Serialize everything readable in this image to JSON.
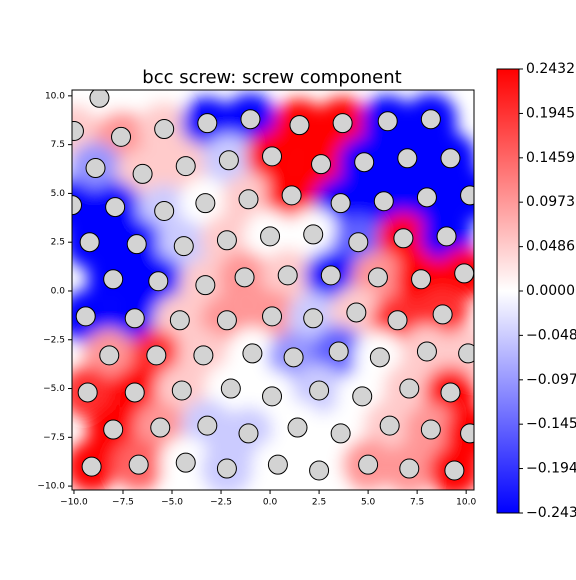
{
  "chart_data": {
    "type": "scatter",
    "title": "bcc screw: screw component",
    "colormap": "bwr",
    "xlim": [
      -10.1,
      10.4
    ],
    "ylim": [
      -10.2,
      10.3
    ],
    "xticks": [
      {
        "value": -10,
        "label": "−10.0"
      },
      {
        "value": -7.5,
        "label": "−7.5"
      },
      {
        "value": -5,
        "label": "−5.0"
      },
      {
        "value": -2.5,
        "label": "−2.5"
      },
      {
        "value": 0,
        "label": "0.0"
      },
      2.5,
      {
        "value": 5,
        "label": "5.0"
      },
      7.5,
      {
        "value": 10,
        "label": "10.0"
      }
    ],
    "yticks": [
      {
        "value": -10,
        "label": "−10.0"
      },
      {
        "value": -7.5,
        "label": "−7.5"
      },
      {
        "value": -5,
        "label": "−5.0"
      },
      {
        "value": -2.5,
        "label": "−2.5"
      },
      {
        "value": 0,
        "label": "0.0"
      },
      2.5,
      {
        "value": 5,
        "label": "5.0"
      },
      7.5,
      {
        "value": 10,
        "label": "10.0"
      }
    ],
    "x": [
      -8.7,
      -10,
      -7.6,
      -5.4,
      -3.2,
      -1,
      1.5,
      3.7,
      6,
      8.2,
      -8.9,
      -6.5,
      -4.3,
      -2.1,
      0.1,
      2.6,
      4.8,
      7,
      9.2,
      -10.1,
      -7.9,
      -5.4,
      -3.3,
      -1.1,
      1.1,
      3.6,
      5.8,
      8,
      10.2,
      -9.2,
      -6.8,
      -4.4,
      -2.2,
      0,
      2.2,
      4.5,
      6.8,
      9,
      -8,
      -5.7,
      -3.3,
      -1.3,
      0.9,
      3.1,
      5.5,
      7.7,
      9.9,
      -9.4,
      -6.9,
      -4.6,
      -2.2,
      0.1,
      2.2,
      4.4,
      6.5,
      8.8,
      -8.2,
      -5.8,
      -3.4,
      -0.9,
      1.2,
      3.5,
      5.6,
      8,
      10.1,
      -9.3,
      -6.9,
      -4.5,
      -2,
      0.1,
      2.5,
      4.7,
      7.1,
      9.2,
      -8,
      -5.6,
      -3.2,
      -1.1,
      1.4,
      3.6,
      6.1,
      8.2,
      10.2,
      -9.1,
      -6.7,
      -4.3,
      -2.2,
      0.4,
      2.5,
      5,
      7.1,
      9.4
    ],
    "y": [
      9.9,
      8.2,
      7.9,
      8.3,
      8.6,
      8.8,
      8.5,
      8.6,
      8.7,
      8.8,
      6.3,
      6,
      6.4,
      6.7,
      6.9,
      6.5,
      6.6,
      6.8,
      6.8,
      4.4,
      4.3,
      4.1,
      4.5,
      4.7,
      4.9,
      4.5,
      4.6,
      4.8,
      4.9,
      2.5,
      2.4,
      2.3,
      2.6,
      2.8,
      2.9,
      2.5,
      2.7,
      2.8,
      0.6,
      0.5,
      0.3,
      0.7,
      0.8,
      0.8,
      0.7,
      0.6,
      0.9,
      -1.3,
      -1.4,
      -1.5,
      -1.5,
      -1.3,
      -1.4,
      -1.1,
      -1.5,
      -1.2,
      -3.3,
      -3.3,
      -3.3,
      -3.2,
      -3.4,
      -3.1,
      -3.4,
      -3.1,
      -3.2,
      -5.2,
      -5.2,
      -5.1,
      -5,
      -5.4,
      -5.1,
      -5.4,
      -5,
      -5.2,
      -7.1,
      -7,
      -6.9,
      -7.3,
      -7,
      -7.3,
      -6.9,
      -7.1,
      -7.3,
      -9,
      -8.9,
      -8.8,
      -9.1,
      -8.9,
      -9.2,
      -8.9,
      -9.1,
      -9.2
    ],
    "c": [
      0,
      0.05,
      0.1,
      0.05,
      -0.24,
      -0.24,
      0.24,
      0.24,
      -0.24,
      -0.24,
      -0.1,
      0.05,
      0.05,
      -0.05,
      0.24,
      0.24,
      -0.24,
      -0.24,
      -0.24,
      -0.24,
      -0.24,
      -0.05,
      0,
      0.05,
      0.24,
      -0.24,
      -0.24,
      -0.24,
      -0.24,
      -0.24,
      -0.24,
      -0.05,
      0.05,
      0,
      0,
      -0.15,
      0.24,
      -0.24,
      -0.24,
      -0.24,
      0.05,
      0.1,
      0.05,
      -0.24,
      0.1,
      0.24,
      0.24,
      -0.24,
      -0.24,
      0.05,
      0.1,
      0.1,
      -0.05,
      0.05,
      0.2,
      0.2,
      0.1,
      0.2,
      0.05,
      0,
      -0.1,
      -0.15,
      0,
      0.05,
      0.05,
      0.2,
      0.24,
      0.05,
      0,
      0,
      -0.05,
      0,
      0.05,
      0.24,
      0.24,
      0.1,
      -0.05,
      -0.05,
      0,
      0,
      0.05,
      0.1,
      0.24,
      0.24,
      0.15,
      0,
      -0.05,
      0,
      0,
      0.1,
      0.1,
      0.24
    ],
    "colorbar": {
      "lim": [
        -0.2432,
        0.2432
      ],
      "ticks": [
        0.2432,
        0.1945,
        0.1459,
        0.0973,
        0.0486,
        {
          "value": 0,
          "label": "0.0000"
        },
        {
          "value": -0.0486,
          "label": "−0.0486"
        },
        {
          "value": -0.0973,
          "label": "−0.0973"
        },
        {
          "value": -0.1459,
          "label": "−0.1459"
        },
        {
          "value": -0.1945,
          "label": "−0.1945"
        },
        {
          "value": -0.2432,
          "label": "−0.2432"
        }
      ]
    }
  }
}
